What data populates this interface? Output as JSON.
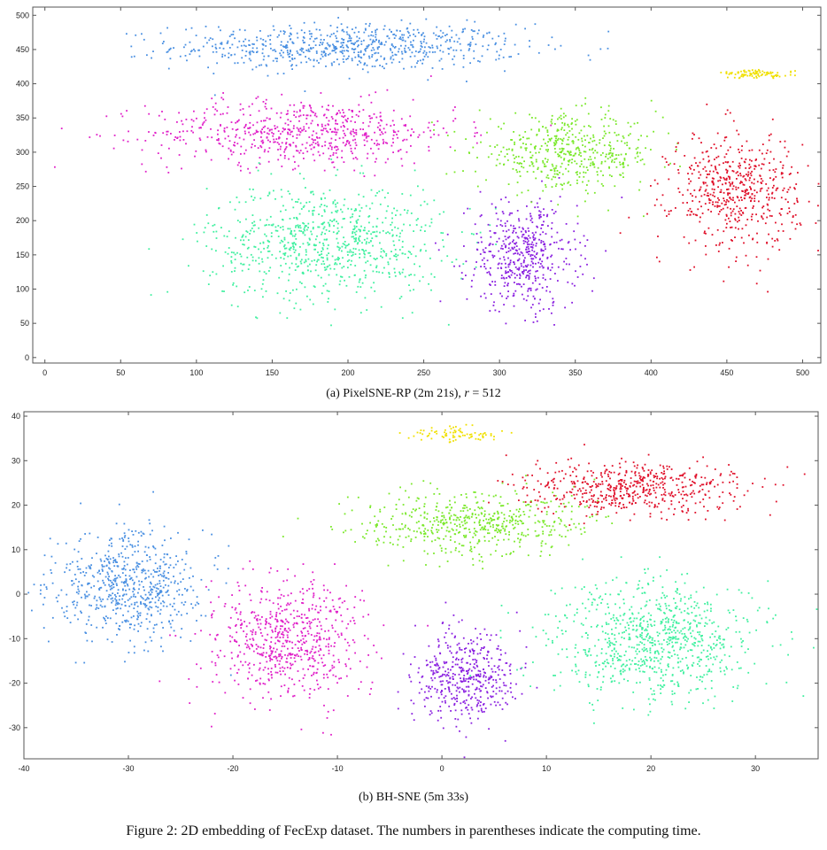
{
  "figure_caption": "Figure 2: 2D embedding of FecExp dataset. The numbers in parentheses indicate the computing time.",
  "chart_data": [
    {
      "type": "scatter",
      "caption_prefix": "(a) PixelSNE-RP (2m 21s), ",
      "caption_var": "r",
      "caption_suffix": " = 512",
      "xlim": [
        -8,
        512
      ],
      "ylim": [
        -8,
        512
      ],
      "x_ticks": [
        0,
        50,
        100,
        150,
        200,
        250,
        300,
        350,
        400,
        450,
        500
      ],
      "y_ticks": [
        0,
        50,
        100,
        150,
        200,
        250,
        300,
        350,
        400,
        450,
        500
      ],
      "grid": false,
      "clusters": [
        {
          "color": "#4a90e2",
          "cx": 200,
          "cy": 455,
          "sx": 95,
          "sy": 28,
          "n": 700
        },
        {
          "color": "#e020c8",
          "cx": 170,
          "cy": 330,
          "sx": 85,
          "sy": 40,
          "n": 650
        },
        {
          "color": "#40f0a0",
          "cx": 185,
          "cy": 170,
          "sx": 65,
          "sy": 70,
          "n": 800
        },
        {
          "color": "#8a20e0",
          "cx": 315,
          "cy": 150,
          "sx": 30,
          "sy": 65,
          "n": 500
        },
        {
          "color": "#7ae82a",
          "cx": 345,
          "cy": 300,
          "sx": 50,
          "sy": 45,
          "n": 500
        },
        {
          "color": "#e0102a",
          "cx": 455,
          "cy": 245,
          "sx": 35,
          "sy": 70,
          "n": 550
        },
        {
          "color": "#f0e000",
          "cx": 470,
          "cy": 415,
          "sx": 20,
          "sy": 5,
          "n": 90
        }
      ]
    },
    {
      "type": "scatter",
      "caption": "(b) BH-SNE (5m 33s)",
      "xlim": [
        -40,
        36
      ],
      "ylim": [
        -37,
        41
      ],
      "x_ticks": [
        -40,
        -30,
        -20,
        -10,
        0,
        10,
        20,
        30
      ],
      "y_ticks": [
        -30,
        -20,
        -10,
        0,
        10,
        20,
        30,
        40
      ],
      "grid": false,
      "clusters": [
        {
          "color": "#4a90e2",
          "cx": -30,
          "cy": 2,
          "sx": 6,
          "sy": 10,
          "n": 650
        },
        {
          "color": "#e020c8",
          "cx": -15,
          "cy": -10,
          "sx": 6,
          "sy": 11,
          "n": 650
        },
        {
          "color": "#8a20e0",
          "cx": 2,
          "cy": -18,
          "sx": 4,
          "sy": 9,
          "n": 450
        },
        {
          "color": "#7ae82a",
          "cx": 3,
          "cy": 16,
          "sx": 9,
          "sy": 6,
          "n": 550
        },
        {
          "color": "#e0102a",
          "cx": 18,
          "cy": 24,
          "sx": 9,
          "sy": 5,
          "n": 550
        },
        {
          "color": "#40f0a0",
          "cx": 20,
          "cy": -10,
          "sx": 8,
          "sy": 11,
          "n": 850
        },
        {
          "color": "#f0e000",
          "cx": 1,
          "cy": 36,
          "sx": 4,
          "sy": 1.5,
          "n": 80
        }
      ]
    }
  ]
}
